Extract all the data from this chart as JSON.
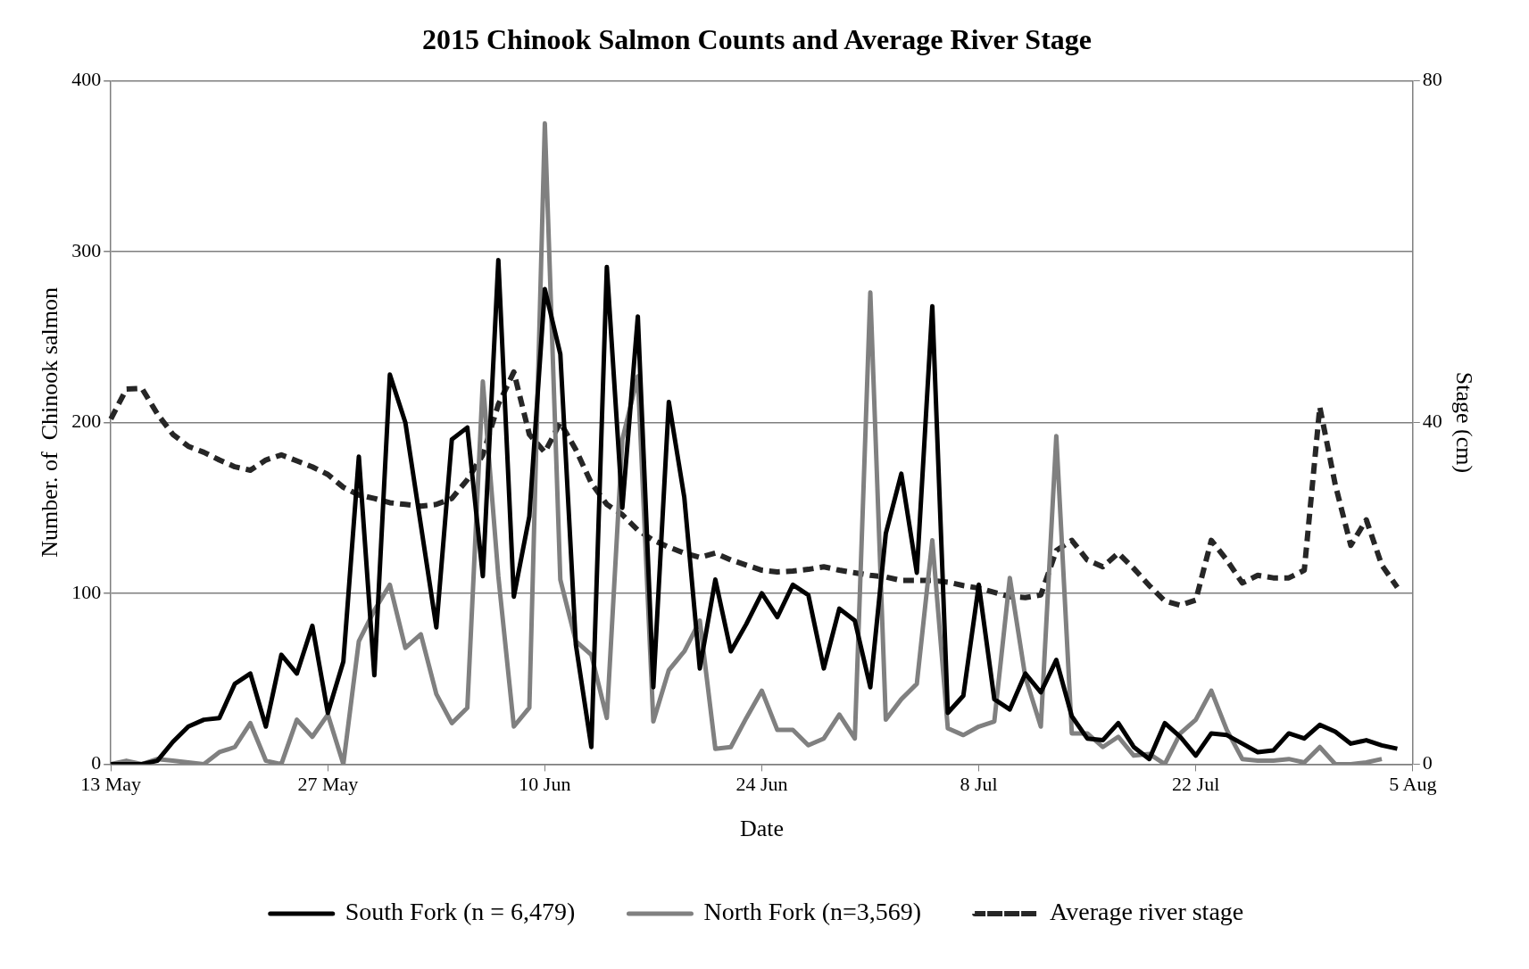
{
  "chart_data": {
    "type": "line",
    "title": "2015 Chinook Salmon Counts and Average River Stage",
    "xlabel": "Date",
    "ylabel": "Number. of  Chinook salmon",
    "y2label": "Stage (cm)",
    "categories": [
      "13 May",
      null,
      null,
      null,
      null,
      null,
      null,
      null,
      null,
      null,
      null,
      null,
      null,
      null,
      "27 May",
      null,
      null,
      null,
      null,
      null,
      null,
      null,
      null,
      null,
      null,
      null,
      null,
      null,
      "10 Jun",
      null,
      null,
      null,
      null,
      null,
      null,
      null,
      null,
      null,
      null,
      null,
      null,
      null,
      "24 Jun",
      null,
      null,
      null,
      null,
      null,
      null,
      null,
      null,
      null,
      null,
      null,
      null,
      null,
      "8 Jul",
      null,
      null,
      null,
      null,
      null,
      null,
      null,
      null,
      null,
      null,
      null,
      null,
      null,
      "22 Jul",
      null,
      null,
      null,
      null,
      null,
      null,
      null,
      null,
      null,
      null,
      null,
      null,
      null,
      "5 Aug"
    ],
    "series": [
      {
        "name": "South Fork (n = 6,479)",
        "color": "#000000",
        "line_style": "solid",
        "values": [
          0,
          0,
          0,
          2,
          13,
          22,
          26,
          27,
          47,
          53,
          22,
          64,
          53,
          81,
          30,
          60,
          180,
          52,
          228,
          200,
          140,
          80,
          190,
          197,
          110,
          295,
          98,
          145,
          278,
          240,
          70,
          10,
          291,
          150,
          262,
          45,
          212,
          156,
          56,
          108,
          66,
          82,
          100,
          86,
          105,
          99,
          56,
          91,
          84,
          45,
          135,
          170,
          112,
          268,
          30,
          40,
          105,
          38,
          32,
          53,
          42,
          61,
          28,
          15,
          14,
          24,
          10,
          3,
          24,
          16,
          5,
          18,
          17,
          12,
          7,
          8,
          18,
          15,
          23,
          19,
          12,
          14,
          11,
          9,
          null
        ]
      },
      {
        "name": "North Fork (n=3,569)",
        "color": "#808080",
        "line_style": "solid",
        "values": [
          0,
          2,
          0,
          3,
          2,
          1,
          0,
          7,
          10,
          24,
          2,
          0,
          26,
          16,
          29,
          0,
          72,
          90,
          105,
          68,
          76,
          41,
          24,
          33,
          224,
          110,
          22,
          33,
          375,
          108,
          72,
          64,
          27,
          190,
          227,
          25,
          55,
          66,
          84,
          9,
          10,
          27,
          43,
          20,
          20,
          11,
          15,
          29,
          15,
          276,
          26,
          38,
          47,
          131,
          21,
          17,
          22,
          25,
          109,
          51,
          22,
          192,
          18,
          18,
          10,
          16,
          5,
          6,
          0,
          18,
          26,
          43,
          20,
          3,
          2,
          2,
          3,
          1,
          10,
          0,
          0,
          1,
          3,
          null,
          null
        ]
      },
      {
        "name": "Average river stage",
        "color": "#262626",
        "line_style": "dashed",
        "axis": "y2",
        "values": [
          40.4,
          43.9,
          44,
          41,
          38.6,
          37.2,
          36.5,
          35.6,
          34.8,
          34.4,
          35.6,
          36.2,
          35.5,
          34.8,
          33.9,
          32.4,
          31.5,
          31.1,
          30.6,
          30.4,
          30.2,
          30.4,
          31.1,
          33.3,
          36.2,
          42.1,
          45.9,
          38.6,
          36.5,
          40,
          36.8,
          32.9,
          30.4,
          29.2,
          27.4,
          26.2,
          25.4,
          24.7,
          24.2,
          24.7,
          23.9,
          23.3,
          22.7,
          22.5,
          22.6,
          22.8,
          23.1,
          22.7,
          22.4,
          22.1,
          21.9,
          21.5,
          21.5,
          21.5,
          21.3,
          20.9,
          20.6,
          20.1,
          19.6,
          19.5,
          19.8,
          25,
          26.2,
          23.9,
          23.1,
          24.7,
          22.9,
          20.9,
          19.1,
          18.6,
          19.2,
          26.2,
          23.9,
          21.2,
          22.1,
          21.8,
          21.8,
          22.7,
          41.8,
          32.7,
          25.6,
          28.6,
          23.3,
          20.7,
          null
        ]
      }
    ],
    "ylim": [
      0,
      400
    ],
    "yticks": [
      0,
      100,
      200,
      300,
      400
    ],
    "y2lim": [
      0,
      80
    ],
    "y2ticks": [
      0,
      40,
      80
    ],
    "grid": "y",
    "legend": "bottom",
    "marker": "none"
  }
}
